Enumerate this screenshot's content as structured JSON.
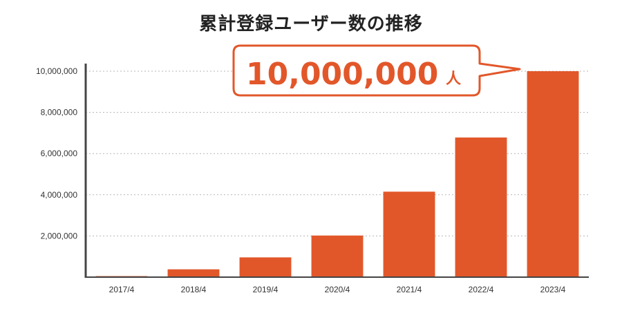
{
  "title": "累計登録ユーザー数の推移",
  "colors": {
    "bar": "#e2572a",
    "axis": "#444444",
    "grid": "#b5b5b5",
    "callout_border": "#e2572a",
    "callout_text": "#e2572a"
  },
  "callout": {
    "value": "10,000,000",
    "unit": "人"
  },
  "chart_data": {
    "type": "bar",
    "title": "累計登録ユーザー数の推移",
    "categories": [
      "2017/4",
      "2018/4",
      "2019/4",
      "2020/4",
      "2021/4",
      "2022/4",
      "2023/4"
    ],
    "values": [
      50000,
      380000,
      960000,
      2020000,
      4150000,
      6780000,
      10000000
    ],
    "ylim": [
      0,
      10000000
    ],
    "yticks": [
      2000000,
      4000000,
      6000000,
      8000000,
      10000000
    ],
    "ytick_labels": [
      "2,000,000",
      "4,000,000",
      "6,000,000",
      "8,000,000",
      "10,000,000"
    ],
    "grid": true,
    "xlabel": "",
    "ylabel": ""
  }
}
